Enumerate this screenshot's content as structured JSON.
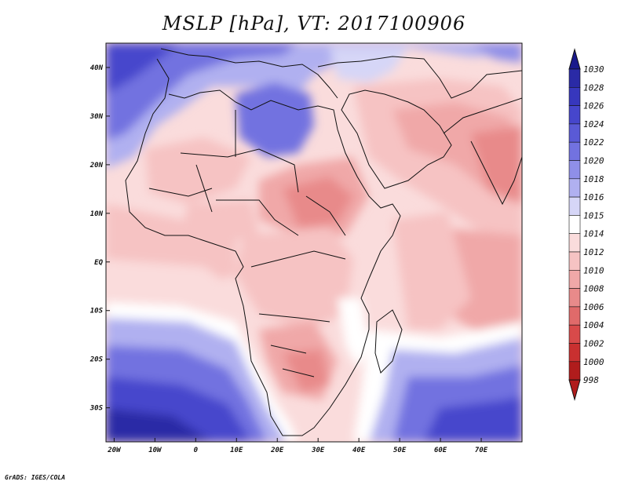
{
  "title": "MSLP [hPa], VT: 2017100906",
  "credit": "GrADS: IGES/COLA",
  "map": {
    "lon_range": [
      -22,
      80
    ],
    "lat_range": [
      -37,
      45
    ],
    "lon_ticks": [
      {
        "value": -20,
        "label": "20W"
      },
      {
        "value": -10,
        "label": "10W"
      },
      {
        "value": 0,
        "label": "0"
      },
      {
        "value": 10,
        "label": "10E"
      },
      {
        "value": 20,
        "label": "20E"
      },
      {
        "value": 30,
        "label": "30E"
      },
      {
        "value": 40,
        "label": "40E"
      },
      {
        "value": 50,
        "label": "50E"
      },
      {
        "value": 60,
        "label": "60E"
      },
      {
        "value": 70,
        "label": "70E"
      }
    ],
    "lat_ticks": [
      {
        "value": 40,
        "label": "40N"
      },
      {
        "value": 30,
        "label": "30N"
      },
      {
        "value": 20,
        "label": "20N"
      },
      {
        "value": 10,
        "label": "10N"
      },
      {
        "value": 0,
        "label": "EQ"
      },
      {
        "value": -10,
        "label": "10S"
      },
      {
        "value": -20,
        "label": "20S"
      },
      {
        "value": -30,
        "label": "30S"
      }
    ]
  },
  "colorbar": {
    "levels": [
      "1030",
      "1028",
      "1026",
      "1024",
      "1022",
      "1020",
      "1018",
      "1016",
      "1015",
      "1014",
      "1012",
      "1010",
      "1008",
      "1006",
      "1004",
      "1002",
      "1000",
      "998"
    ],
    "colors": [
      "#1a1a8c",
      "#2a2aa6",
      "#3737bd",
      "#4646cc",
      "#5a5ad6",
      "#7272e0",
      "#8f8fe8",
      "#b0b0f0",
      "#d6d6f7",
      "#ffffff",
      "#fadcdc",
      "#f6c3c3",
      "#f0a8a8",
      "#e88a8a",
      "#e06a6a",
      "#d84a4a",
      "#c93030",
      "#b01c1c"
    ]
  }
}
